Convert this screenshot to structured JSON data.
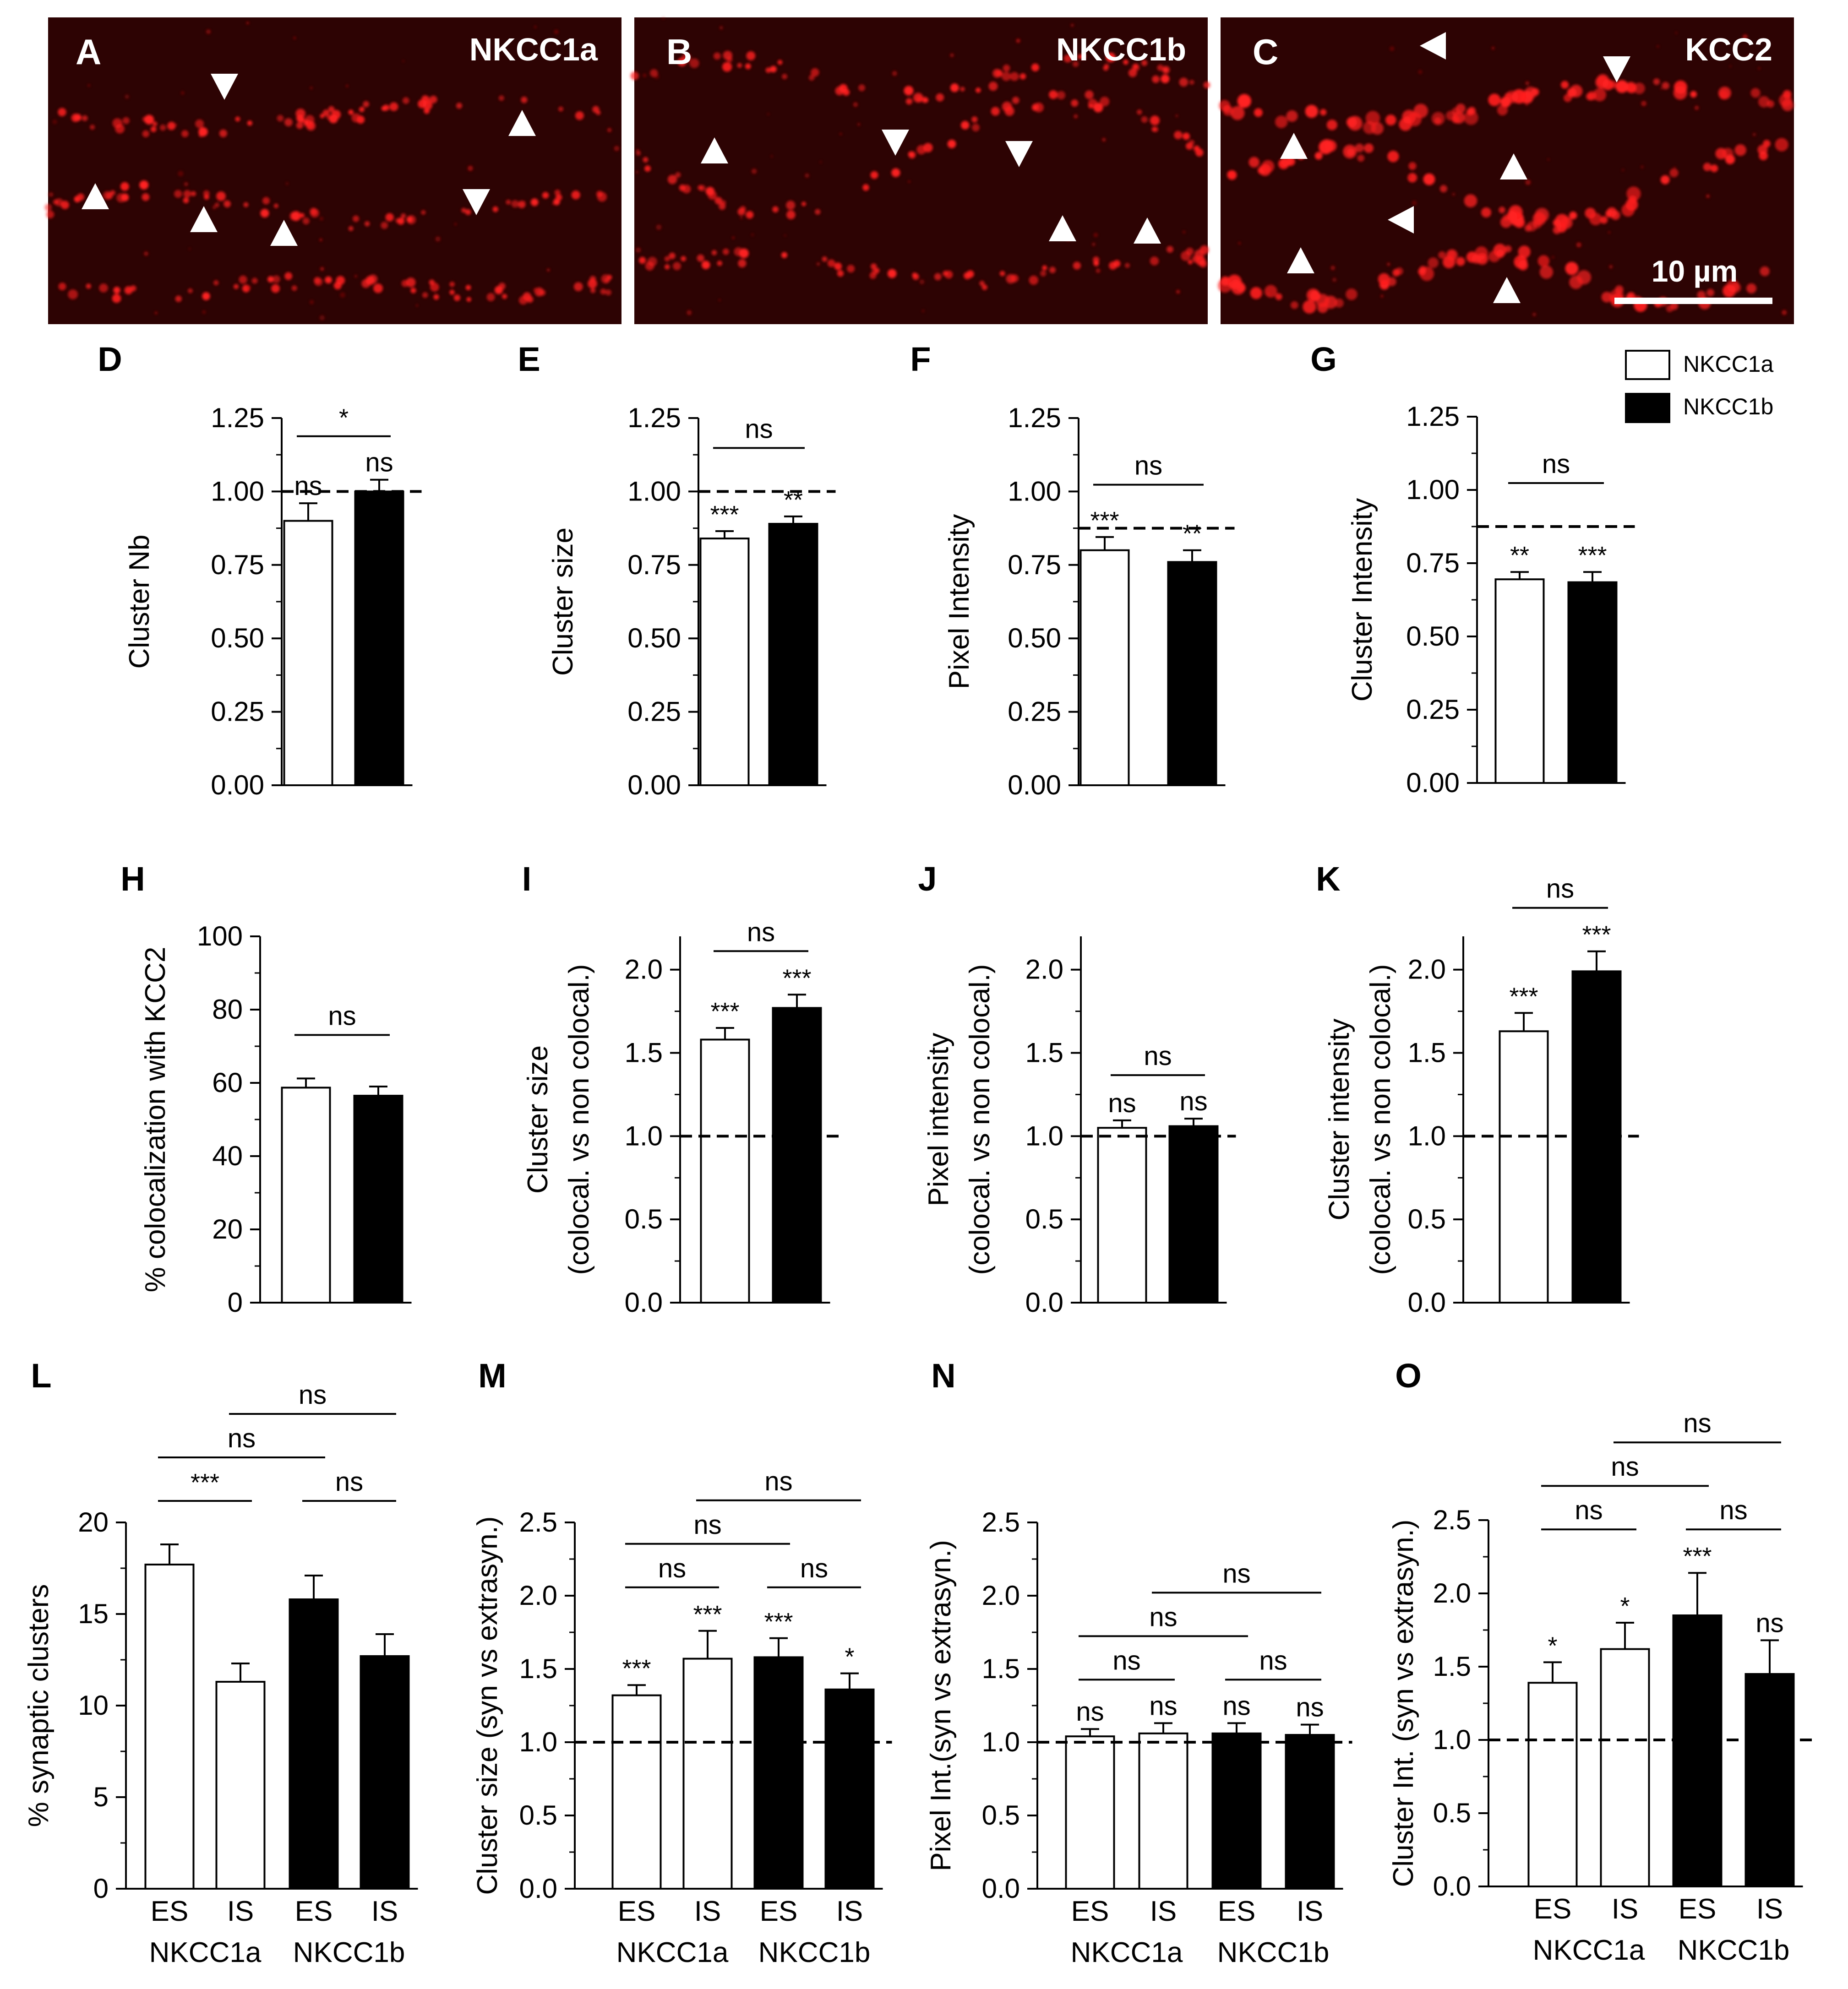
{
  "micrographs": [
    {
      "letter": "A",
      "label": "NKCC1a"
    },
    {
      "letter": "B",
      "label": "NKCC1b"
    },
    {
      "letter": "C",
      "label": "KCC2",
      "scalebar": "10 µm"
    }
  ],
  "legend": [
    {
      "label": "NKCC1a",
      "color": "#ffffff"
    },
    {
      "label": "NKCC1b",
      "color": "#000000"
    }
  ],
  "colors": {
    "nkcc1a": "#ffffff",
    "nkcc1b": "#000000",
    "micro_bg": "#3a0404",
    "puncta": "#ff1a1a"
  },
  "chart_data": [
    {
      "panel": "D",
      "type": "bar",
      "ylabel": "Cluster Nb",
      "ylim": [
        0,
        1.25
      ],
      "yticks": [
        "0.00",
        "0.25",
        "0.50",
        "0.75",
        "1.00",
        "1.25"
      ],
      "tickvals": [
        0,
        0.25,
        0.5,
        0.75,
        1.0,
        1.25
      ],
      "refline": 1.0,
      "categories": [
        "NKCC1a",
        "NKCC1b"
      ],
      "values": [
        0.9,
        1.0
      ],
      "errors": [
        0.06,
        0.04
      ],
      "stars": [
        "ns",
        "ns"
      ],
      "comparisons": [
        {
          "a": 0,
          "b": 1,
          "text": "*"
        }
      ]
    },
    {
      "panel": "E",
      "type": "bar",
      "ylabel": "Cluster size",
      "ylim": [
        0,
        1.25
      ],
      "yticks": [
        "0.00",
        "0.25",
        "0.50",
        "0.75",
        "1.00",
        "1.25"
      ],
      "tickvals": [
        0,
        0.25,
        0.5,
        0.75,
        1.0,
        1.25
      ],
      "refline": 1.0,
      "categories": [
        "NKCC1a",
        "NKCC1b"
      ],
      "values": [
        0.84,
        0.89
      ],
      "errors": [
        0.025,
        0.025
      ],
      "stars": [
        "***",
        "**"
      ],
      "comparisons": [
        {
          "a": 0,
          "b": 1,
          "text": "ns"
        }
      ]
    },
    {
      "panel": "F",
      "type": "bar",
      "ylabel": "Pixel Intensity",
      "ylim": [
        0,
        1.25
      ],
      "yticks": [
        "0.00",
        "0.25",
        "0.50",
        "0.75",
        "1.00",
        "1.25"
      ],
      "tickvals": [
        0,
        0.25,
        0.5,
        0.75,
        1.0,
        1.25
      ],
      "refline": 0.875,
      "categories": [
        "NKCC1a",
        "NKCC1b"
      ],
      "values": [
        0.8,
        0.76
      ],
      "errors": [
        0.045,
        0.04
      ],
      "stars": [
        "***",
        "**"
      ],
      "comparisons": [
        {
          "a": 0,
          "b": 1,
          "text": "ns"
        }
      ]
    },
    {
      "panel": "G",
      "type": "bar",
      "ylabel": "Cluster Intensity",
      "ylim": [
        0,
        1.25
      ],
      "yticks": [
        "0.00",
        "0.25",
        "0.50",
        "0.75",
        "1.00",
        "1.25"
      ],
      "tickvals": [
        0,
        0.25,
        0.5,
        0.75,
        1.0,
        1.25
      ],
      "refline": 0.875,
      "categories": [
        "NKCC1a",
        "NKCC1b"
      ],
      "values": [
        0.695,
        0.685
      ],
      "errors": [
        0.025,
        0.035
      ],
      "stars": [
        "**",
        "***"
      ],
      "comparisons": [
        {
          "a": 0,
          "b": 1,
          "text": "ns"
        }
      ]
    },
    {
      "panel": "H",
      "type": "bar",
      "ylabel": "% colocalization with KCC2",
      "ylim": [
        0,
        100
      ],
      "yticks": [
        "0",
        "20",
        "40",
        "60",
        "80",
        "100"
      ],
      "tickvals": [
        0,
        20,
        40,
        60,
        80,
        100
      ],
      "refline": null,
      "categories": [
        "NKCC1a",
        "NKCC1b"
      ],
      "values": [
        58.7,
        56.5
      ],
      "errors": [
        2.5,
        2.5
      ],
      "stars": [
        "",
        ""
      ],
      "comparisons": [
        {
          "a": 0,
          "b": 1,
          "text": "ns"
        }
      ]
    },
    {
      "panel": "I",
      "type": "bar",
      "ylabel": "Cluster size",
      "ylabel2": "(colocal. vs non colocal.)",
      "ylim": [
        0,
        2.2
      ],
      "yticks": [
        "0.0",
        "0.5",
        "1.0",
        "1.5",
        "2.0"
      ],
      "tickvals": [
        0,
        0.5,
        1.0,
        1.5,
        2.0
      ],
      "refline": 1.0,
      "categories": [
        "NKCC1a",
        "NKCC1b"
      ],
      "values": [
        1.58,
        1.77
      ],
      "errors": [
        0.07,
        0.08
      ],
      "stars": [
        "***",
        "***"
      ],
      "comparisons": [
        {
          "a": 0,
          "b": 1,
          "text": "ns"
        }
      ]
    },
    {
      "panel": "J",
      "type": "bar",
      "ylabel": "Pixel intensity",
      "ylabel2": "(colocal. vs non colocal.)",
      "ylim": [
        0,
        2.2
      ],
      "yticks": [
        "0.0",
        "0.5",
        "1.0",
        "1.5",
        "2.0"
      ],
      "tickvals": [
        0,
        0.5,
        1.0,
        1.5,
        2.0
      ],
      "refline": 1.0,
      "categories": [
        "NKCC1a",
        "NKCC1b"
      ],
      "values": [
        1.05,
        1.06
      ],
      "errors": [
        0.045,
        0.045
      ],
      "stars": [
        "ns",
        "ns"
      ],
      "comparisons": [
        {
          "a": 0,
          "b": 1,
          "text": "ns"
        }
      ]
    },
    {
      "panel": "K",
      "type": "bar",
      "ylabel": "Cluster intensity",
      "ylabel2": "(colocal. vs non colocal.)",
      "ylim": [
        0,
        2.2
      ],
      "yticks": [
        "0.0",
        "0.5",
        "1.0",
        "1.5",
        "2.0"
      ],
      "tickvals": [
        0,
        0.5,
        1.0,
        1.5,
        2.0
      ],
      "refline": 1.0,
      "categories": [
        "NKCC1a",
        "NKCC1b"
      ],
      "values": [
        1.63,
        1.99
      ],
      "errors": [
        0.11,
        0.12
      ],
      "stars": [
        "***",
        "***"
      ],
      "comparisons": [
        {
          "a": 0,
          "b": 1,
          "text": "ns"
        }
      ]
    },
    {
      "panel": "L",
      "type": "bar",
      "ylabel": "% synaptic clusters",
      "ylim": [
        0,
        20
      ],
      "yticks": [
        "0",
        "5",
        "10",
        "15",
        "20"
      ],
      "tickvals": [
        0,
        5,
        10,
        15,
        20
      ],
      "refline": null,
      "categories": [
        "ES",
        "IS",
        "ES",
        "IS"
      ],
      "groups": [
        "NKCC1a",
        "NKCC1b"
      ],
      "values": [
        17.7,
        11.3,
        15.8,
        12.7
      ],
      "errors": [
        1.1,
        1.0,
        1.3,
        1.2
      ],
      "stars": [
        "",
        "",
        "",
        ""
      ],
      "comparisons": [
        {
          "a": 0,
          "b": 1,
          "text": "***"
        },
        {
          "a": 2,
          "b": 3,
          "text": "ns"
        },
        {
          "a": 0,
          "b": 2,
          "text": "ns"
        },
        {
          "a": 1,
          "b": 3,
          "text": "ns"
        }
      ]
    },
    {
      "panel": "M",
      "type": "bar",
      "ylabel": "Cluster size (syn vs extrasyn.)",
      "ylim": [
        0,
        2.5
      ],
      "yticks": [
        "0.0",
        "0.5",
        "1.0",
        "1.5",
        "2.0",
        "2.5"
      ],
      "tickvals": [
        0,
        0.5,
        1.0,
        1.5,
        2.0,
        2.5
      ],
      "refline": 1.0,
      "categories": [
        "ES",
        "IS",
        "ES",
        "IS"
      ],
      "groups": [
        "NKCC1a",
        "NKCC1b"
      ],
      "values": [
        1.32,
        1.57,
        1.58,
        1.36
      ],
      "errors": [
        0.07,
        0.19,
        0.13,
        0.11
      ],
      "stars": [
        "***",
        "***",
        "***",
        "*"
      ],
      "comparisons": [
        {
          "a": 0,
          "b": 1,
          "text": "ns"
        },
        {
          "a": 2,
          "b": 3,
          "text": "ns"
        },
        {
          "a": 0,
          "b": 2,
          "text": "ns"
        },
        {
          "a": 1,
          "b": 3,
          "text": "ns"
        }
      ]
    },
    {
      "panel": "N",
      "type": "bar",
      "ylabel": "Pixel Int.(syn vs extrasyn.)",
      "ylim": [
        0,
        2.5
      ],
      "yticks": [
        "0.0",
        "0.5",
        "1.0",
        "1.5",
        "2.0",
        "2.5"
      ],
      "tickvals": [
        0,
        0.5,
        1.0,
        1.5,
        2.0,
        2.5
      ],
      "refline": 1.0,
      "categories": [
        "ES",
        "IS",
        "ES",
        "IS"
      ],
      "groups": [
        "NKCC1a",
        "NKCC1b"
      ],
      "values": [
        1.04,
        1.06,
        1.06,
        1.05
      ],
      "errors": [
        0.05,
        0.07,
        0.07,
        0.07
      ],
      "stars": [
        "ns",
        "ns",
        "ns",
        "ns"
      ],
      "comparisons": [
        {
          "a": 0,
          "b": 1,
          "text": "ns"
        },
        {
          "a": 2,
          "b": 3,
          "text": "ns"
        },
        {
          "a": 0,
          "b": 2,
          "text": "ns"
        },
        {
          "a": 1,
          "b": 3,
          "text": "ns"
        }
      ]
    },
    {
      "panel": "O",
      "type": "bar",
      "ylabel": "Cluster Int. (syn vs extrasyn.)",
      "ylim": [
        0,
        2.5
      ],
      "yticks": [
        "0.0",
        "0.5",
        "1.0",
        "1.5",
        "2.0",
        "2.5"
      ],
      "tickvals": [
        0,
        0.5,
        1.0,
        1.5,
        2.0,
        2.5
      ],
      "refline": 1.0,
      "categories": [
        "ES",
        "IS",
        "ES",
        "IS"
      ],
      "groups": [
        "NKCC1a",
        "NKCC1b"
      ],
      "values": [
        1.39,
        1.62,
        1.85,
        1.45
      ],
      "errors": [
        0.14,
        0.18,
        0.29,
        0.23
      ],
      "stars": [
        "*",
        "*",
        "***",
        "ns"
      ],
      "comparisons": [
        {
          "a": 0,
          "b": 1,
          "text": "ns"
        },
        {
          "a": 2,
          "b": 3,
          "text": "ns"
        },
        {
          "a": 0,
          "b": 2,
          "text": "ns"
        },
        {
          "a": 1,
          "b": 3,
          "text": "ns"
        }
      ]
    }
  ]
}
